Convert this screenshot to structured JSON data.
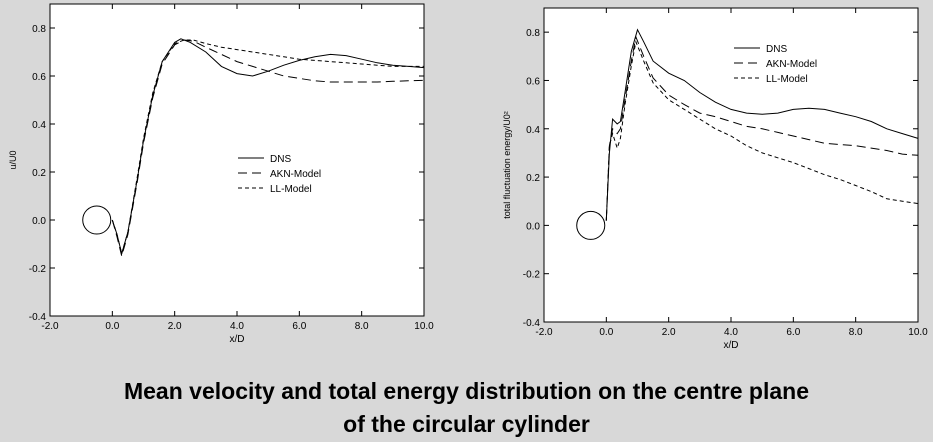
{
  "caption": {
    "line1": "Mean velocity and total energy distribution on the centre plane",
    "line2": "of the circular cylinder"
  },
  "colors": {
    "background": "#d8d8d8",
    "plot_area": "#ffffff",
    "ink": "#000000"
  },
  "chart_data": [
    {
      "type": "line",
      "xlabel": "x/D",
      "ylabel": "u/U0",
      "xlim": [
        -2.0,
        10.0
      ],
      "ylim": [
        -0.4,
        0.9
      ],
      "xticks": [
        "-2.0",
        "0.0",
        "2.0",
        "4.0",
        "6.0",
        "8.0",
        "10.0"
      ],
      "yticks": [
        "-0.4",
        "-0.2",
        "0.0",
        "0.2",
        "0.4",
        "0.6",
        "0.8"
      ],
      "legend_position": "center-right",
      "cylinder": {
        "center_x": -0.5,
        "center_y": 0.0,
        "radius": 0.5
      },
      "series": [
        {
          "name": "DNS",
          "style": "solid",
          "x": [
            0.0,
            0.15,
            0.3,
            0.5,
            0.8,
            1.0,
            1.3,
            1.6,
            2.0,
            2.2,
            2.5,
            3.0,
            3.5,
            4.0,
            4.5,
            5.0,
            5.5,
            6.0,
            6.5,
            7.0,
            7.5,
            8.0,
            8.5,
            9.0,
            9.5,
            10.0
          ],
          "y": [
            0.0,
            -0.06,
            -0.14,
            -0.05,
            0.17,
            0.33,
            0.52,
            0.66,
            0.74,
            0.755,
            0.74,
            0.7,
            0.64,
            0.61,
            0.6,
            0.62,
            0.645,
            0.665,
            0.68,
            0.69,
            0.685,
            0.67,
            0.655,
            0.645,
            0.64,
            0.635
          ]
        },
        {
          "name": "AKN-Model",
          "style": "dashed",
          "x": [
            0.0,
            0.15,
            0.3,
            0.5,
            0.8,
            1.0,
            1.3,
            1.6,
            2.0,
            2.3,
            2.6,
            3.0,
            3.5,
            4.0,
            4.5,
            5.0,
            5.5,
            6.0,
            6.5,
            7.0,
            7.5,
            8.0,
            8.5,
            9.0,
            9.5,
            10.0
          ],
          "y": [
            0.0,
            -0.07,
            -0.15,
            -0.06,
            0.16,
            0.32,
            0.51,
            0.65,
            0.73,
            0.75,
            0.745,
            0.72,
            0.69,
            0.66,
            0.64,
            0.62,
            0.6,
            0.59,
            0.58,
            0.575,
            0.575,
            0.575,
            0.575,
            0.578,
            0.58,
            0.582
          ]
        },
        {
          "name": "LL-Model",
          "style": "short-dashed",
          "x": [
            0.0,
            0.15,
            0.3,
            0.5,
            0.8,
            1.0,
            1.3,
            1.6,
            2.0,
            2.3,
            2.6,
            3.0,
            3.5,
            4.0,
            4.5,
            5.0,
            5.5,
            6.0,
            6.5,
            7.0,
            7.5,
            8.0,
            8.5,
            9.0,
            9.5,
            10.0
          ],
          "y": [
            0.0,
            -0.06,
            -0.14,
            -0.05,
            0.18,
            0.34,
            0.53,
            0.66,
            0.735,
            0.75,
            0.75,
            0.735,
            0.72,
            0.71,
            0.7,
            0.69,
            0.68,
            0.67,
            0.665,
            0.66,
            0.655,
            0.65,
            0.645,
            0.64,
            0.64,
            0.64
          ]
        }
      ]
    },
    {
      "type": "line",
      "xlabel": "x/D",
      "ylabel": "total fluctuation energy/U0²",
      "xlim": [
        -2.0,
        10.0
      ],
      "ylim": [
        -0.4,
        0.9
      ],
      "xticks": [
        "-2.0",
        "0.0",
        "2.0",
        "4.0",
        "6.0",
        "8.0",
        "10.0"
      ],
      "yticks": [
        "-0.4",
        "-0.2",
        "0.0",
        "0.2",
        "0.4",
        "0.6",
        "0.8"
      ],
      "legend_position": "top-right",
      "cylinder": {
        "center_x": -0.5,
        "center_y": 0.0,
        "radius": 0.5
      },
      "series": [
        {
          "name": "DNS",
          "style": "solid",
          "x": [
            0.0,
            0.1,
            0.2,
            0.35,
            0.45,
            0.6,
            0.8,
            1.0,
            1.2,
            1.5,
            2.0,
            2.5,
            3.0,
            3.5,
            4.0,
            4.5,
            5.0,
            5.5,
            6.0,
            6.5,
            7.0,
            7.5,
            8.0,
            8.5,
            9.0,
            9.5,
            10.0
          ],
          "y": [
            0.02,
            0.3,
            0.44,
            0.42,
            0.43,
            0.55,
            0.72,
            0.81,
            0.76,
            0.68,
            0.63,
            0.6,
            0.55,
            0.51,
            0.48,
            0.465,
            0.46,
            0.465,
            0.48,
            0.485,
            0.48,
            0.465,
            0.45,
            0.43,
            0.4,
            0.38,
            0.36
          ]
        },
        {
          "name": "AKN-Model",
          "style": "dashed",
          "x": [
            0.0,
            0.1,
            0.2,
            0.35,
            0.45,
            0.6,
            0.8,
            0.95,
            1.2,
            1.5,
            2.0,
            2.5,
            3.0,
            3.5,
            4.0,
            4.5,
            5.0,
            5.5,
            6.0,
            6.5,
            7.0,
            7.5,
            8.0,
            8.5,
            9.0,
            9.5,
            10.0
          ],
          "y": [
            0.02,
            0.33,
            0.4,
            0.38,
            0.4,
            0.52,
            0.68,
            0.78,
            0.7,
            0.61,
            0.54,
            0.5,
            0.465,
            0.45,
            0.43,
            0.41,
            0.4,
            0.385,
            0.37,
            0.355,
            0.34,
            0.335,
            0.33,
            0.32,
            0.31,
            0.295,
            0.29
          ]
        },
        {
          "name": "LL-Model",
          "style": "short-dashed",
          "x": [
            0.0,
            0.1,
            0.2,
            0.35,
            0.45,
            0.6,
            0.8,
            0.95,
            1.2,
            1.5,
            2.0,
            2.5,
            3.0,
            3.5,
            4.0,
            4.5,
            5.0,
            5.5,
            6.0,
            6.5,
            7.0,
            7.5,
            8.0,
            8.5,
            9.0,
            9.5,
            10.0
          ],
          "y": [
            0.02,
            0.33,
            0.38,
            0.32,
            0.36,
            0.5,
            0.66,
            0.76,
            0.68,
            0.59,
            0.52,
            0.48,
            0.44,
            0.4,
            0.37,
            0.33,
            0.3,
            0.28,
            0.26,
            0.235,
            0.21,
            0.19,
            0.165,
            0.14,
            0.11,
            0.1,
            0.09
          ]
        }
      ]
    }
  ]
}
